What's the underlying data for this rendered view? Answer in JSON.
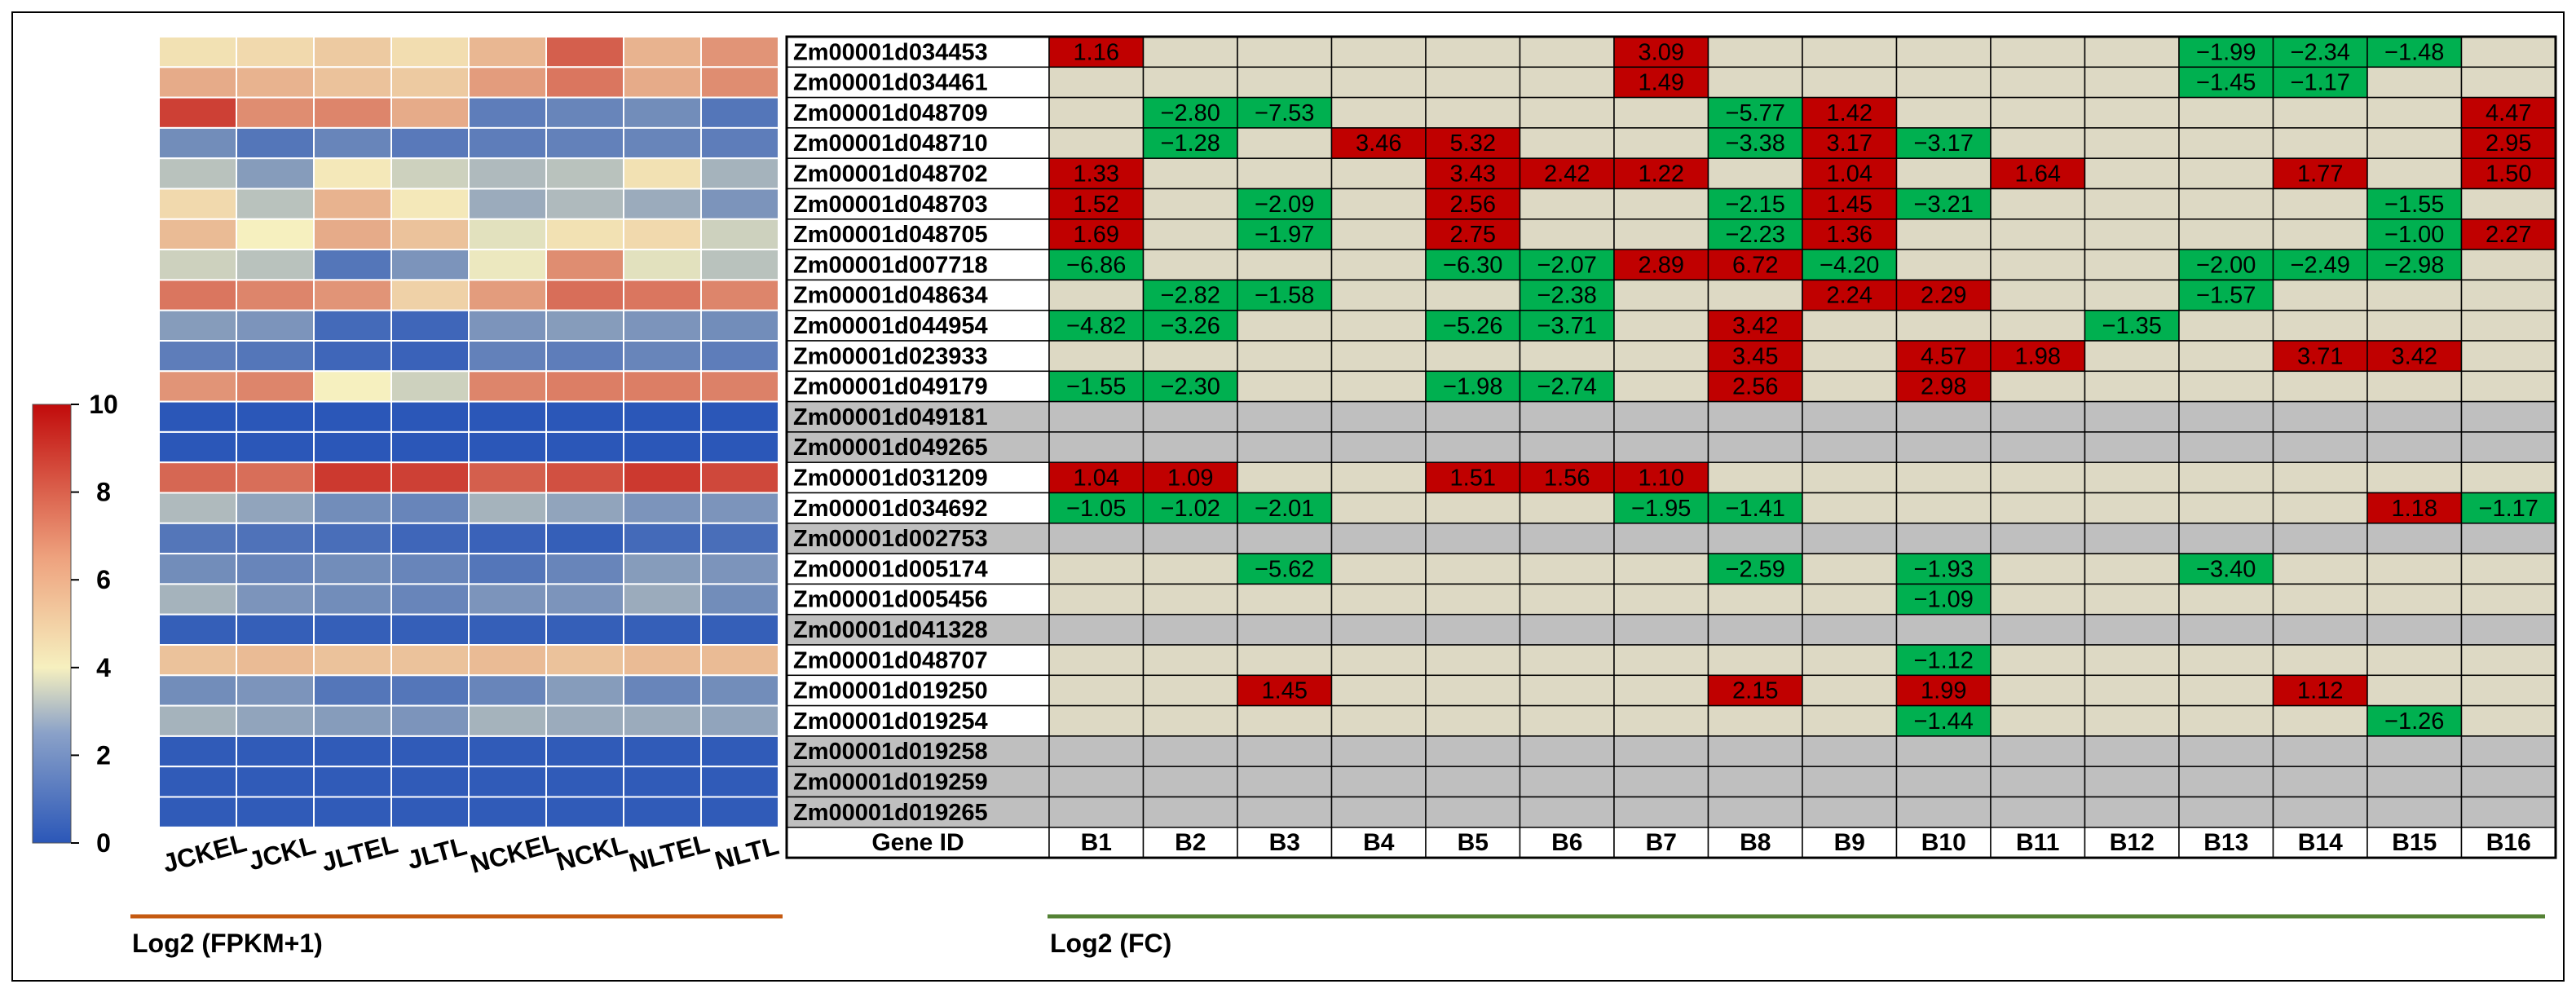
{
  "chart_data": [
    {
      "type": "heatmap",
      "title": "",
      "xlabel": "Log2 (FPKM+1)",
      "columns": [
        "JCKEL",
        "JCKL",
        "JLTEL",
        "JLTL",
        "NCKEL",
        "NCKL",
        "NLTEL",
        "NLTL"
      ],
      "colorbar": {
        "min": 0,
        "max": 10,
        "ticks": [
          0,
          2,
          4,
          6,
          8,
          10
        ],
        "colors": [
          "#2b57b8",
          "#f6f0bf",
          "#c10b0b"
        ]
      },
      "values": [
        [
          4.4,
          4.6,
          5.0,
          4.5,
          5.5,
          7.8,
          5.6,
          6.4
        ],
        [
          5.8,
          5.6,
          5.2,
          5.0,
          6.2,
          7.2,
          5.8,
          6.6
        ],
        [
          8.6,
          6.6,
          6.8,
          5.8,
          1.0,
          1.2,
          1.4,
          0.8
        ],
        [
          1.4,
          0.8,
          1.2,
          0.9,
          1.0,
          1.1,
          1.2,
          1.0
        ],
        [
          2.8,
          1.8,
          4.2,
          3.2,
          2.6,
          2.8,
          4.4,
          2.4
        ],
        [
          4.6,
          2.8,
          5.6,
          4.2,
          2.2,
          2.6,
          2.2,
          1.6
        ],
        [
          5.4,
          4.0,
          5.8,
          5.2,
          3.6,
          4.4,
          4.6,
          3.2
        ],
        [
          3.2,
          2.8,
          0.8,
          1.6,
          3.8,
          6.6,
          3.6,
          2.8
        ],
        [
          7.2,
          6.8,
          6.4,
          4.8,
          6.2,
          7.4,
          7.2,
          6.8
        ],
        [
          1.8,
          1.6,
          0.5,
          0.4,
          1.6,
          1.8,
          1.6,
          1.4
        ],
        [
          1.0,
          0.8,
          0.4,
          0.3,
          1.1,
          1.0,
          1.2,
          1.0
        ],
        [
          6.4,
          6.8,
          4.0,
          3.2,
          6.8,
          7.0,
          7.0,
          6.9
        ],
        [
          0.0,
          0.0,
          0.0,
          0.0,
          0.0,
          0.0,
          0.0,
          0.0
        ],
        [
          0.0,
          0.0,
          0.0,
          0.0,
          0.0,
          0.0,
          0.0,
          0.0
        ],
        [
          7.6,
          7.4,
          8.8,
          8.6,
          7.8,
          8.2,
          8.8,
          8.4
        ],
        [
          2.6,
          2.0,
          1.4,
          1.2,
          2.4,
          2.0,
          1.6,
          1.6
        ],
        [
          0.8,
          0.7,
          0.6,
          0.4,
          0.3,
          0.2,
          0.5,
          0.6
        ],
        [
          1.4,
          1.2,
          1.4,
          1.2,
          0.8,
          1.2,
          1.8,
          1.6
        ],
        [
          2.4,
          1.6,
          1.4,
          1.2,
          1.6,
          1.6,
          2.2,
          1.4
        ],
        [
          0.2,
          0.2,
          0.2,
          0.2,
          0.2,
          0.2,
          0.2,
          0.2
        ],
        [
          5.2,
          5.4,
          5.2,
          5.2,
          5.4,
          5.2,
          5.4,
          5.4
        ],
        [
          1.4,
          1.6,
          0.8,
          0.8,
          1.2,
          1.8,
          1.2,
          1.4
        ],
        [
          2.4,
          2.0,
          1.8,
          1.6,
          2.4,
          2.2,
          2.2,
          2.0
        ],
        [
          0.1,
          0.1,
          0.1,
          0.1,
          0.1,
          0.1,
          0.1,
          0.1
        ],
        [
          0.1,
          0.1,
          0.1,
          0.1,
          0.1,
          0.1,
          0.1,
          0.1
        ],
        [
          0.1,
          0.1,
          0.1,
          0.1,
          0.1,
          0.1,
          0.1,
          0.1
        ]
      ]
    },
    {
      "type": "table",
      "xlabel": "Log2 (FC)",
      "header_label": "Gene ID",
      "columns": [
        "B1",
        "B2",
        "B3",
        "B4",
        "B5",
        "B6",
        "B7",
        "B8",
        "B9",
        "B10",
        "B11",
        "B12",
        "B13",
        "B14",
        "B15",
        "B16"
      ],
      "colors": {
        "up": "#c00000",
        "down": "#00b050",
        "none": "#ddd9c4",
        "na": "#bfbfbf"
      },
      "rows": [
        {
          "gene": "Zm00001d034453",
          "na": false,
          "values": [
            "1.16",
            "",
            "",
            "",
            "",
            "",
            "3.09",
            "",
            "",
            "",
            "",
            "",
            "−1.99",
            "−2.34",
            "−1.48",
            ""
          ]
        },
        {
          "gene": "Zm00001d034461",
          "na": false,
          "values": [
            "",
            "",
            "",
            "",
            "",
            "",
            "1.49",
            "",
            "",
            "",
            "",
            "",
            "−1.45",
            "−1.17",
            "",
            ""
          ]
        },
        {
          "gene": "Zm00001d048709",
          "na": false,
          "values": [
            "",
            "−2.80",
            "−7.53",
            "",
            "",
            "",
            "",
            "−5.77",
            "1.42",
            "",
            "",
            "",
            "",
            "",
            "",
            "4.47"
          ]
        },
        {
          "gene": "Zm00001d048710",
          "na": false,
          "values": [
            "",
            "−1.28",
            "",
            "3.46",
            "5.32",
            "",
            "",
            "−3.38",
            "3.17",
            "−3.17",
            "",
            "",
            "",
            "",
            "",
            "2.95"
          ]
        },
        {
          "gene": "Zm00001d048702",
          "na": false,
          "values": [
            "1.33",
            "",
            "",
            "",
            "3.43",
            "2.42",
            "1.22",
            "",
            "1.04",
            "",
            "1.64",
            "",
            "",
            "1.77",
            "",
            "1.50"
          ]
        },
        {
          "gene": "Zm00001d048703",
          "na": false,
          "values": [
            "1.52",
            "",
            "−2.09",
            "",
            "2.56",
            "",
            "",
            "−2.15",
            "1.45",
            "−3.21",
            "",
            "",
            "",
            "",
            "−1.55",
            ""
          ]
        },
        {
          "gene": "Zm00001d048705",
          "na": false,
          "values": [
            "1.69",
            "",
            "−1.97",
            "",
            "2.75",
            "",
            "",
            "−2.23",
            "1.36",
            "",
            "",
            "",
            "",
            "",
            "−1.00",
            "2.27"
          ]
        },
        {
          "gene": "Zm00001d007718",
          "na": false,
          "values": [
            "−6.86",
            "",
            "",
            "",
            "−6.30",
            "−2.07",
            "2.89",
            "6.72",
            "−4.20",
            "",
            "",
            "",
            "−2.00",
            "−2.49",
            "−2.98",
            ""
          ]
        },
        {
          "gene": "Zm00001d048634",
          "na": false,
          "values": [
            "",
            "−2.82",
            "−1.58",
            "",
            "",
            "−2.38",
            "",
            "",
            "2.24",
            "2.29",
            "",
            "",
            "−1.57",
            "",
            "",
            ""
          ]
        },
        {
          "gene": "Zm00001d044954",
          "na": false,
          "values": [
            "−4.82",
            "−3.26",
            "",
            "",
            "−5.26",
            "−3.71",
            "",
            "3.42",
            "",
            "",
            "",
            "−1.35",
            "",
            "",
            "",
            ""
          ]
        },
        {
          "gene": "Zm00001d023933",
          "na": false,
          "values": [
            "",
            "",
            "",
            "",
            "",
            "",
            "",
            "3.45",
            "",
            "4.57",
            "1.98",
            "",
            "",
            "3.71",
            "3.42",
            ""
          ]
        },
        {
          "gene": "Zm00001d049179",
          "na": false,
          "values": [
            "−1.55",
            "−2.30",
            "",
            "",
            "−1.98",
            "−2.74",
            "",
            "2.56",
            "",
            "2.98",
            "",
            "",
            "",
            "",
            "",
            ""
          ]
        },
        {
          "gene": "Zm00001d049181",
          "na": true,
          "values": [
            "",
            "",
            "",
            "",
            "",
            "",
            "",
            "",
            "",
            "",
            "",
            "",
            "",
            "",
            "",
            ""
          ]
        },
        {
          "gene": "Zm00001d049265",
          "na": true,
          "values": [
            "",
            "",
            "",
            "",
            "",
            "",
            "",
            "",
            "",
            "",
            "",
            "",
            "",
            "",
            "",
            ""
          ]
        },
        {
          "gene": "Zm00001d031209",
          "na": false,
          "values": [
            "1.04",
            "1.09",
            "",
            "",
            "1.51",
            "1.56",
            "1.10",
            "",
            "",
            "",
            "",
            "",
            "",
            "",
            "",
            ""
          ]
        },
        {
          "gene": "Zm00001d034692",
          "na": false,
          "values": [
            "−1.05",
            "−1.02",
            "−2.01",
            "",
            "",
            "",
            "−1.95",
            "−1.41",
            "",
            "",
            "",
            "",
            "",
            "",
            "1.18",
            "−1.17"
          ]
        },
        {
          "gene": "Zm00001d002753",
          "na": true,
          "values": [
            "",
            "",
            "",
            "",
            "",
            "",
            "",
            "",
            "",
            "",
            "",
            "",
            "",
            "",
            "",
            ""
          ]
        },
        {
          "gene": "Zm00001d005174",
          "na": false,
          "values": [
            "",
            "",
            "−5.62",
            "",
            "",
            "",
            "",
            "−2.59",
            "",
            "−1.93",
            "",
            "",
            "−3.40",
            "",
            "",
            ""
          ]
        },
        {
          "gene": "Zm00001d005456",
          "na": false,
          "values": [
            "",
            "",
            "",
            "",
            "",
            "",
            "",
            "",
            "",
            "−1.09",
            "",
            "",
            "",
            "",
            "",
            ""
          ]
        },
        {
          "gene": "Zm00001d041328",
          "na": true,
          "values": [
            "",
            "",
            "",
            "",
            "",
            "",
            "",
            "",
            "",
            "",
            "",
            "",
            "",
            "",
            "",
            ""
          ]
        },
        {
          "gene": "Zm00001d048707",
          "na": false,
          "values": [
            "",
            "",
            "",
            "",
            "",
            "",
            "",
            "",
            "",
            "−1.12",
            "",
            "",
            "",
            "",
            "",
            ""
          ]
        },
        {
          "gene": "Zm00001d019250",
          "na": false,
          "values": [
            "",
            "",
            "1.45",
            "",
            "",
            "",
            "",
            "2.15",
            "",
            "1.99",
            "",
            "",
            "",
            "1.12",
            "",
            ""
          ]
        },
        {
          "gene": "Zm00001d019254",
          "na": false,
          "values": [
            "",
            "",
            "",
            "",
            "",
            "",
            "",
            "",
            "",
            "−1.44",
            "",
            "",
            "",
            "",
            "−1.26",
            ""
          ]
        },
        {
          "gene": "Zm00001d019258",
          "na": true,
          "values": [
            "",
            "",
            "",
            "",
            "",
            "",
            "",
            "",
            "",
            "",
            "",
            "",
            "",
            "",
            "",
            ""
          ]
        },
        {
          "gene": "Zm00001d019259",
          "na": true,
          "values": [
            "",
            "",
            "",
            "",
            "",
            "",
            "",
            "",
            "",
            "",
            "",
            "",
            "",
            "",
            "",
            ""
          ]
        },
        {
          "gene": "Zm00001d019265",
          "na": true,
          "values": [
            "",
            "",
            "",
            "",
            "",
            "",
            "",
            "",
            "",
            "",
            "",
            "",
            "",
            "",
            "",
            ""
          ]
        }
      ]
    }
  ],
  "accent": {
    "heatmap_rule": "#c55a11",
    "table_rule": "#548235",
    "frame": "#000000"
  }
}
